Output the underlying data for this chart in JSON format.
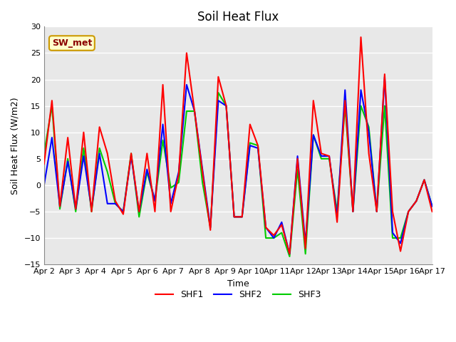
{
  "title": "Soil Heat Flux",
  "ylabel": "Soil Heat Flux (W/m2)",
  "xlabel": "Time",
  "ylim": [
    -15,
    30
  ],
  "fig_bg_color": "#ffffff",
  "plot_bg_color": "#e8e8e8",
  "grid_color": "#ffffff",
  "xtick_labels": [
    "Apr 2",
    "Apr 3",
    "Apr 4",
    "Apr 5",
    "Apr 6",
    "Apr 7",
    "Apr 8",
    "Apr 9",
    "Apr 10",
    "Apr 11",
    "Apr 12",
    "Apr 13",
    "Apr 14",
    "Apr 15",
    "Apr 16",
    "Apr 17"
  ],
  "station_label": "SW_met",
  "legend_entries": [
    "SHF1",
    "SHF2",
    "SHF3"
  ],
  "line_colors": [
    "#ff0000",
    "#0000ff",
    "#00cc00"
  ],
  "shf1": [
    4,
    16,
    -4,
    9,
    -4.5,
    10,
    -5,
    11,
    6,
    -3,
    -5.5,
    6,
    -5,
    6,
    -5,
    19,
    -5,
    2,
    25,
    14,
    2.5,
    -8.5,
    20.5,
    15,
    -6,
    -6,
    11.5,
    7.5,
    -8,
    -9.5,
    -7.5,
    -13,
    5,
    -12,
    16,
    6,
    5.5,
    -7,
    16,
    -5,
    28,
    6,
    -5,
    21,
    -5,
    -12.5,
    -5,
    -3,
    1,
    -5
  ],
  "shf2": [
    0,
    9,
    -4,
    4.5,
    -4.5,
    5.5,
    -4.5,
    6,
    -3.5,
    -3.5,
    -5,
    5.5,
    -5,
    3,
    -3,
    11.5,
    -3.5,
    2.5,
    19,
    14,
    3,
    -8,
    16,
    15,
    -6,
    -6,
    7.5,
    7,
    -8,
    -10,
    -7,
    -13,
    5.5,
    -11,
    9.5,
    5.5,
    5.5,
    -6,
    18,
    -5,
    18,
    10,
    -5,
    20.5,
    -9,
    -11,
    -5,
    -3,
    1,
    -4
  ],
  "shf3": [
    6,
    15,
    -4.5,
    5,
    -5,
    7,
    -5,
    7,
    2.5,
    -3.5,
    -5,
    6,
    -6,
    2.5,
    -3,
    8.5,
    -0.5,
    0.5,
    14,
    14,
    0.5,
    -8,
    17.5,
    15,
    -6,
    -6,
    8,
    7.5,
    -10,
    -10,
    -9,
    -13.5,
    3,
    -13,
    9.5,
    5,
    5,
    -5,
    15,
    -5,
    15,
    11,
    -5,
    15,
    -10,
    -10,
    -5,
    -3,
    1,
    -4
  ],
  "yticks": [
    -15,
    -10,
    -5,
    0,
    5,
    10,
    15,
    20,
    25,
    30
  ],
  "title_fontsize": 12,
  "label_fontsize": 9,
  "tick_fontsize": 8,
  "legend_fontsize": 9,
  "line_width": 1.5
}
